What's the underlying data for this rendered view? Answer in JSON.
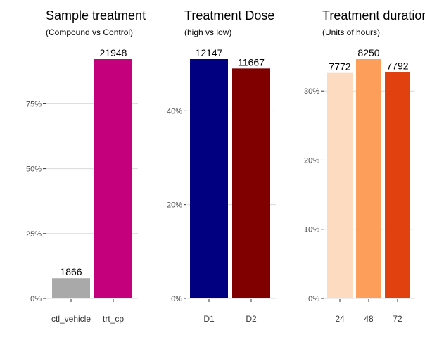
{
  "chart_data": [
    {
      "type": "bar",
      "title": "Sample treatment",
      "subtitle": "(Compound vs Control)",
      "categories": [
        "ctl_vehicle",
        "trt_cp"
      ],
      "values": [
        1866,
        21948
      ],
      "value_labels": [
        "1866",
        "21948"
      ],
      "percent_values": [
        0.078,
        0.922
      ],
      "colors": [
        "#a9a9a9",
        "#c4007c"
      ],
      "ylim": [
        0,
        0.922
      ],
      "yticks": [
        0,
        0.25,
        0.5,
        0.75
      ],
      "ytick_labels": [
        "0%",
        "25%",
        "50%",
        "75%"
      ],
      "grid": true,
      "xlabel": "",
      "ylabel": ""
    },
    {
      "type": "bar",
      "title": "Treatment Dose",
      "subtitle": "(high vs low)",
      "categories": [
        "D1",
        "D2"
      ],
      "values": [
        12147,
        11667
      ],
      "value_labels": [
        "12147",
        "11667"
      ],
      "percent_values": [
        0.51,
        0.49
      ],
      "colors": [
        "#000080",
        "#800000"
      ],
      "ylim": [
        0,
        0.51
      ],
      "yticks": [
        0,
        0.2,
        0.4
      ],
      "ytick_labels": [
        "0%",
        "20%",
        "40%"
      ],
      "grid": true,
      "xlabel": "",
      "ylabel": ""
    },
    {
      "type": "bar",
      "title": "Treatment duration",
      "subtitle": "(Units of hours)",
      "categories": [
        "24",
        "48",
        "72"
      ],
      "values": [
        7772,
        8250,
        7792
      ],
      "value_labels": [
        "7772",
        "8250",
        "7792"
      ],
      "percent_values": [
        0.326,
        0.346,
        0.327
      ],
      "colors": [
        "#fddbc1",
        "#fd9e5a",
        "#e0410f"
      ],
      "ylim": [
        0,
        0.346
      ],
      "yticks": [
        0,
        0.1,
        0.2,
        0.3
      ],
      "ytick_labels": [
        "0%",
        "10%",
        "20%",
        "30%"
      ],
      "grid": true,
      "xlabel": "",
      "ylabel": ""
    }
  ]
}
